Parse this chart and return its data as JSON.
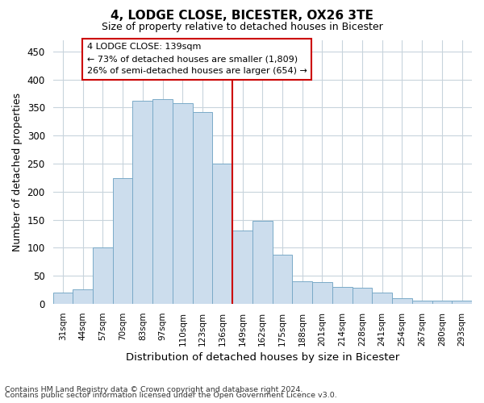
{
  "title": "4, LODGE CLOSE, BICESTER, OX26 3TE",
  "subtitle": "Size of property relative to detached houses in Bicester",
  "xlabel": "Distribution of detached houses by size in Bicester",
  "ylabel": "Number of detached properties",
  "bar_color": "#ccdded",
  "bar_edge_color": "#7aaac8",
  "categories": [
    "31sqm",
    "44sqm",
    "57sqm",
    "70sqm",
    "83sqm",
    "97sqm",
    "110sqm",
    "123sqm",
    "136sqm",
    "149sqm",
    "162sqm",
    "175sqm",
    "188sqm",
    "201sqm",
    "214sqm",
    "228sqm",
    "241sqm",
    "254sqm",
    "267sqm",
    "280sqm",
    "293sqm"
  ],
  "values": [
    20,
    26,
    100,
    224,
    362,
    365,
    358,
    342,
    250,
    130,
    148,
    88,
    40,
    38,
    30,
    28,
    20,
    10,
    5,
    5,
    5
  ],
  "vline_index": 8,
  "vline_color": "#cc0000",
  "annotation_text1": "4 LODGE CLOSE: 139sqm",
  "annotation_text2": "← 73% of detached houses are smaller (1,809)",
  "annotation_text3": "26% of semi-detached houses are larger (654) →",
  "ylim": [
    0,
    470
  ],
  "yticks": [
    0,
    50,
    100,
    150,
    200,
    250,
    300,
    350,
    400,
    450
  ],
  "footnote1": "Contains HM Land Registry data © Crown copyright and database right 2024.",
  "footnote2": "Contains public sector information licensed under the Open Government Licence v3.0.",
  "bg_color": "#ffffff",
  "grid_color": "#c8d4dc"
}
